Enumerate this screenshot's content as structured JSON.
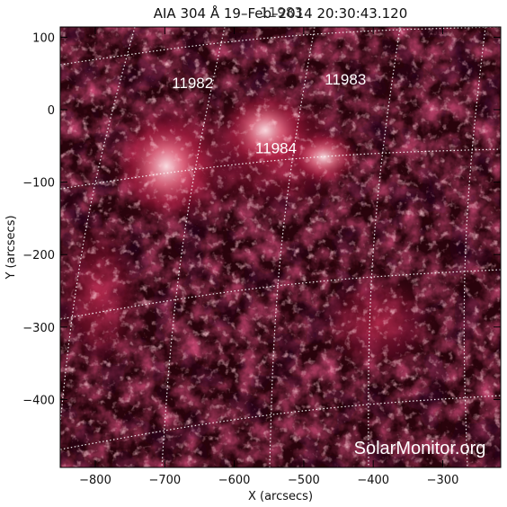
{
  "title": "AIA 304 Å 19–Feb–2014 20:30:43.120",
  "title_overlay": "11983",
  "x_axis": {
    "label": "X (arcsecs)",
    "ticks": [
      {
        "value": -800,
        "label": "−800"
      },
      {
        "value": -700,
        "label": "−700"
      },
      {
        "value": -600,
        "label": "−600"
      },
      {
        "value": -500,
        "label": "−500"
      },
      {
        "value": -400,
        "label": "−400"
      },
      {
        "value": -300,
        "label": "−300"
      }
    ]
  },
  "y_axis": {
    "label": "Y (arcsecs)",
    "ticks": [
      {
        "value": 100,
        "label": "100"
      },
      {
        "value": 0,
        "label": "0"
      },
      {
        "value": -100,
        "label": "−100"
      },
      {
        "value": -200,
        "label": "−200"
      },
      {
        "value": -300,
        "label": "−300"
      },
      {
        "value": -400,
        "label": "−400"
      }
    ]
  },
  "active_regions": [
    {
      "label": "11982",
      "x": -660,
      "y": 30
    },
    {
      "label": "11983",
      "x": -440,
      "y": 35
    },
    {
      "label": "11984",
      "x": -540,
      "y": -60
    }
  ],
  "watermark": "SolarMonitor.org",
  "colors": {
    "background": "#0a0000",
    "plasma_dark": "#3a0612",
    "plasma_mid": "#8a1232",
    "plasma_bright": "#d23a5c",
    "plasma_hot": "#ffd8df",
    "grid": "#ffffff"
  }
}
